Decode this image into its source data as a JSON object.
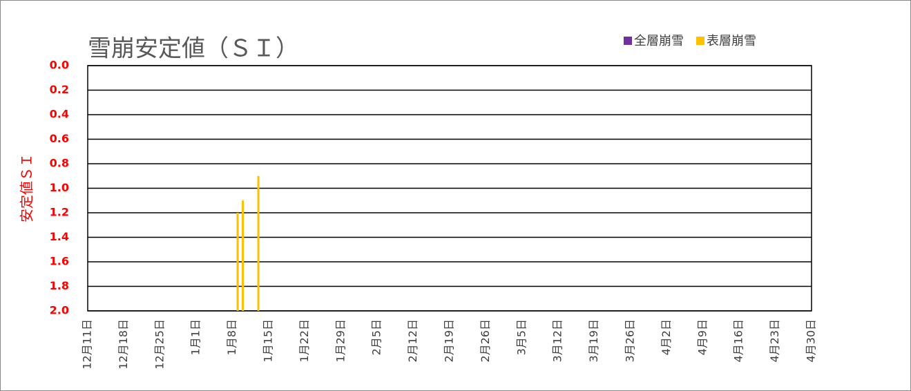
{
  "chart_data": {
    "type": "bar",
    "title": "雪崩安定値（ＳＩ）",
    "y_label": "安定値ＳＩ",
    "x": [
      "1月9日",
      "1月10日",
      "1月13日"
    ],
    "series": [
      {
        "name": "全層崩雪",
        "color": "#7030a0",
        "values": [
          null,
          null,
          null
        ]
      },
      {
        "name": "表層崩雪",
        "color": "#ffc000",
        "values": [
          1.2,
          1.1,
          0.9
        ]
      }
    ],
    "xticks": [
      "12月11日",
      "12月18日",
      "12月25日",
      "1月1日",
      "1月8日",
      "1月15日",
      "1月22日",
      "1月29日",
      "2月5日",
      "2月12日",
      "2月19日",
      "2月26日",
      "3月5日",
      "3月12日",
      "3月19日",
      "3月26日",
      "4月2日",
      "4月9日",
      "4月16日",
      "4月23日",
      "4月30日"
    ],
    "ylim": [
      0,
      2
    ],
    "y_inverted": true,
    "yticks": [
      {
        "value": 0,
        "label": "0.0"
      },
      {
        "value": 0.2,
        "label": "0.2"
      },
      {
        "value": 0.4,
        "label": "0.4"
      },
      {
        "value": 0.6,
        "label": "0.6"
      },
      {
        "value": 0.8,
        "label": "0.8"
      },
      {
        "value": 1,
        "label": "1.0"
      },
      {
        "value": 1.2,
        "label": "1.2"
      },
      {
        "value": 1.4,
        "label": "1.4"
      },
      {
        "value": 1.6,
        "label": "1.6"
      },
      {
        "value": 1.8,
        "label": "1.8"
      },
      {
        "value": 2,
        "label": "2.0"
      }
    ],
    "grid": true,
    "legend_position": "top-right",
    "axis_label_color": "#ff0000"
  }
}
